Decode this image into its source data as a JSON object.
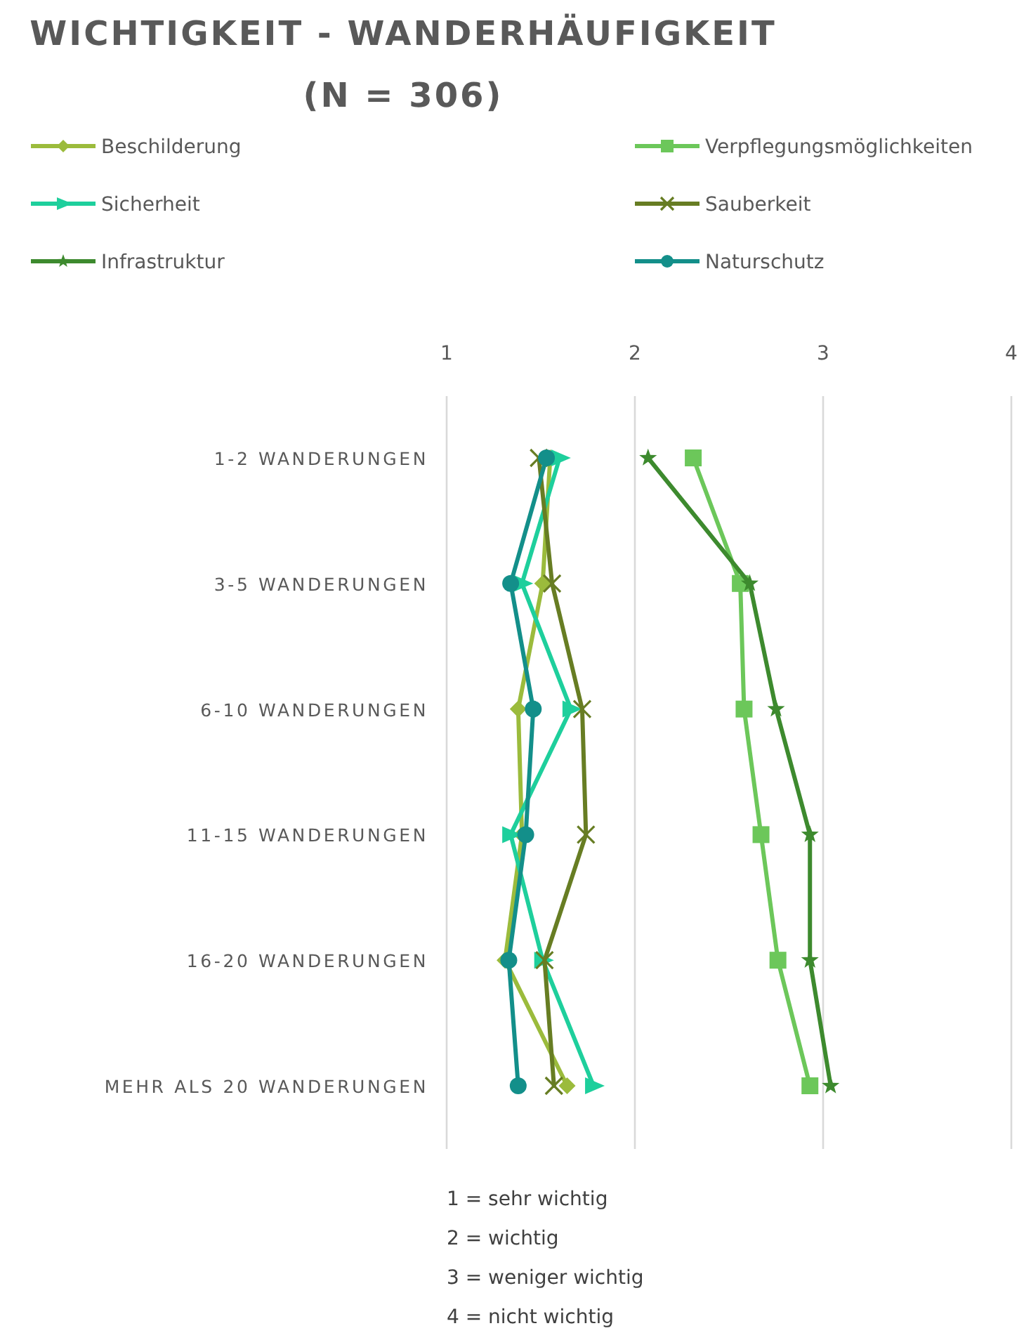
{
  "chart_data": {
    "type": "line",
    "orientation": "horizontal",
    "title": "WICHTIGKEIT - WANDERHÄUFIGKEIT",
    "subtitle": "(N = 306)",
    "categories": [
      "1-2 WANDERUNGEN",
      "3-5 WANDERUNGEN",
      "6-10 WANDERUNGEN",
      "11-15 WANDERUNGEN",
      "16-20 WANDERUNGEN",
      "MEHR ALS 20 WANDERUNGEN"
    ],
    "xlim": [
      1,
      4
    ],
    "xticks": [
      1,
      2,
      3,
      4
    ],
    "grid": "x",
    "legend": "top",
    "series": [
      {
        "name": "Beschilderung",
        "color": "#9bbb3c",
        "marker": "diamond",
        "values": [
          1.55,
          1.51,
          1.38,
          1.4,
          1.31,
          1.64
        ]
      },
      {
        "name": "Verpflegungsmöglichkeiten",
        "color": "#6cc75a",
        "marker": "square",
        "values": [
          2.31,
          2.56,
          2.58,
          2.67,
          2.76,
          2.93
        ]
      },
      {
        "name": "Sicherheit",
        "color": "#1ecf9c",
        "marker": "triangle",
        "values": [
          1.6,
          1.4,
          1.66,
          1.34,
          1.51,
          1.78
        ]
      },
      {
        "name": "Sauberkeit",
        "color": "#677d23",
        "marker": "cross",
        "values": [
          1.49,
          1.56,
          1.72,
          1.74,
          1.52,
          1.57
        ]
      },
      {
        "name": "Infrastruktur",
        "color": "#3d8a2e",
        "marker": "star",
        "values": [
          2.07,
          2.61,
          2.75,
          2.93,
          2.93,
          3.04
        ]
      },
      {
        "name": "Naturschutz",
        "color": "#138f8a",
        "marker": "circle",
        "values": [
          1.53,
          1.34,
          1.46,
          1.42,
          1.33,
          1.38
        ]
      }
    ],
    "annotations": [
      "1 = sehr wichtig",
      "2 = wichtig",
      "3 = weniger wichtig",
      "4 = nicht wichtig"
    ]
  }
}
